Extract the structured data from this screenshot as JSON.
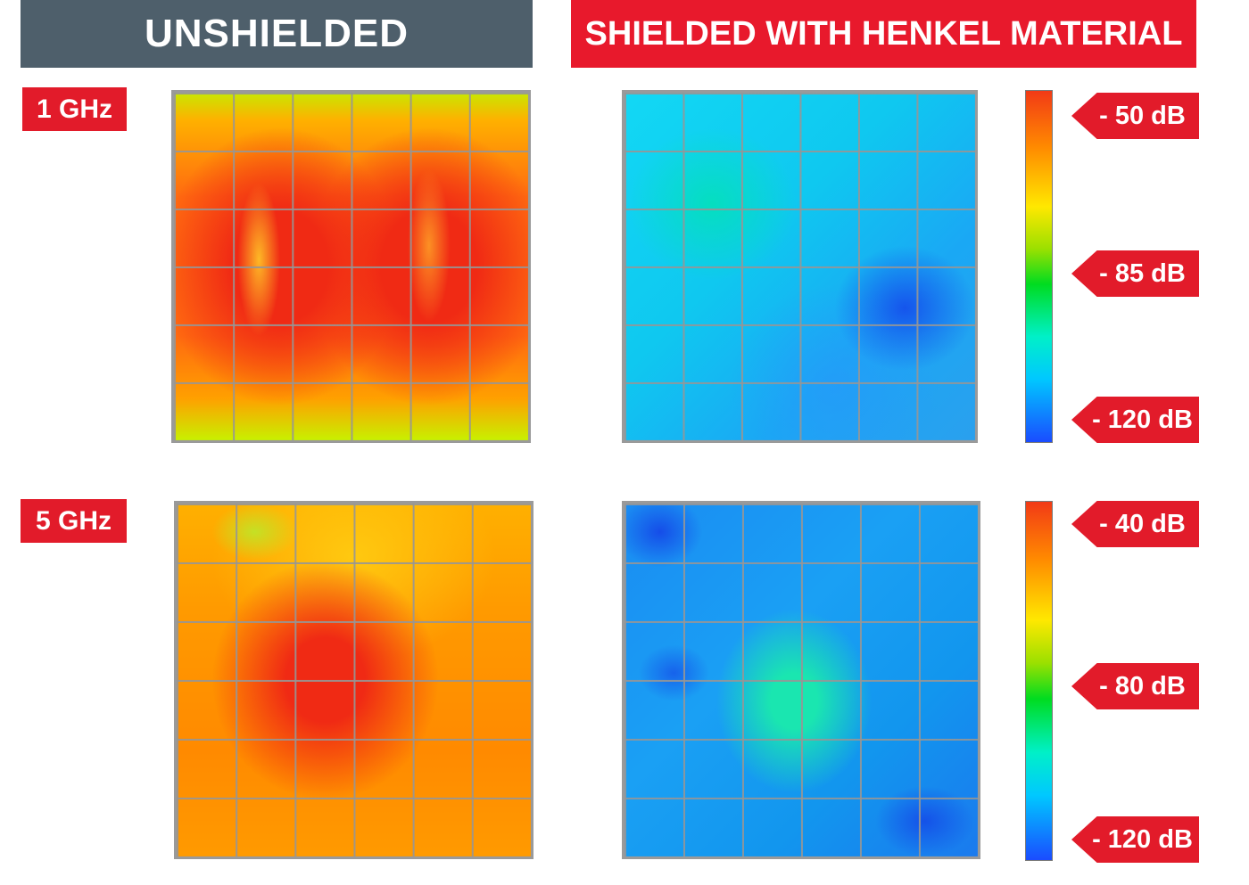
{
  "headers": {
    "left": "UNSHIELDED",
    "right": "SHIELDED WITH HENKEL MATERIAL"
  },
  "rows": [
    {
      "frequency": "1 GHz",
      "scale_labels": [
        "- 50 dB",
        "- 85 dB",
        "- 120 dB"
      ]
    },
    {
      "frequency": "5 GHz",
      "scale_labels": [
        "- 40 dB",
        "- 80 dB",
        "- 120 dB"
      ]
    }
  ],
  "colors": {
    "header_gray": "#4e5f6b",
    "brand_red": "#e21b2a"
  }
}
